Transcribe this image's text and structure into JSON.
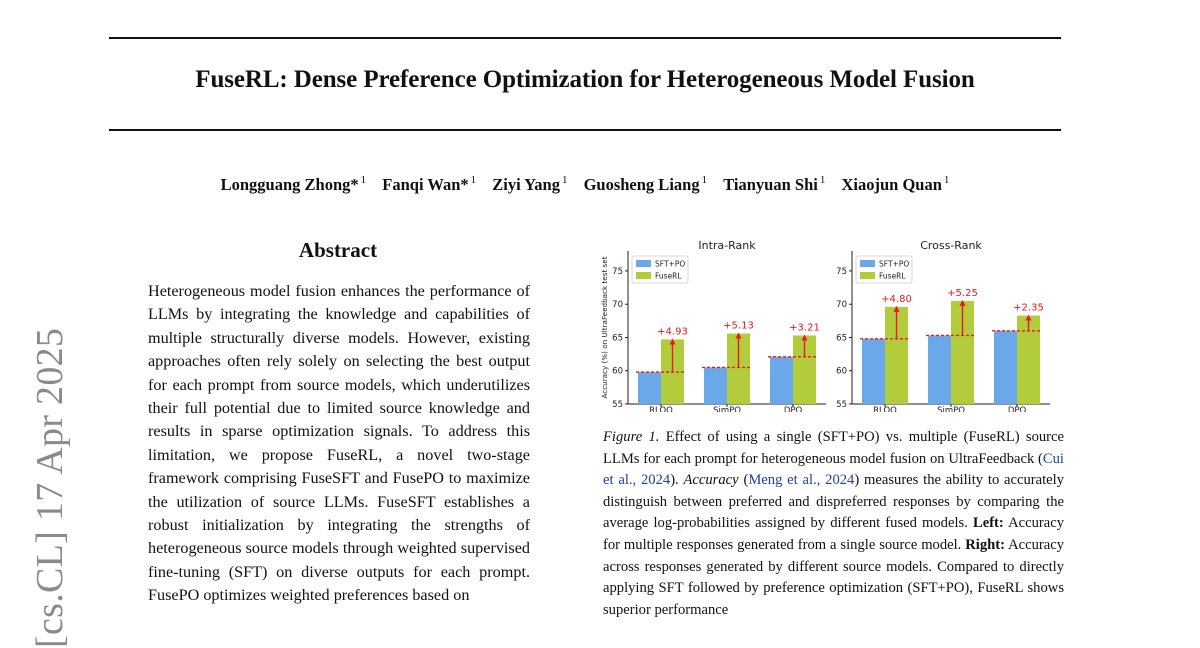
{
  "paper": {
    "title": "FuseRL: Dense Preference Optimization for Heterogeneous Model Fusion",
    "authors": [
      {
        "name": "Longguang Zhong*",
        "aff": "1"
      },
      {
        "name": "Fanqi Wan*",
        "aff": "1"
      },
      {
        "name": "Ziyi Yang",
        "aff": "1"
      },
      {
        "name": "Guosheng Liang",
        "aff": "1"
      },
      {
        "name": "Tianyuan Shi",
        "aff": "1"
      },
      {
        "name": "Xiaojun Quan",
        "aff": "1"
      }
    ],
    "arxiv_stamp": "[cs.CL]  17 Apr 2025"
  },
  "abstract": {
    "heading": "Abstract",
    "text": "Heterogeneous model fusion enhances the performance of LLMs by integrating the knowledge and capabilities of multiple structurally diverse models. However, existing approaches often rely solely on selecting the best output for each prompt from source models, which underutilizes their full potential due to limited source knowledge and results in sparse optimization signals. To address this limitation, we propose FuseRL, a novel two-stage framework comprising FuseSFT and FusePO to maximize the utilization of source LLMs. FuseSFT establishes a robust initialization by integrating the strengths of heterogeneous source models through weighted supervised fine-tuning (SFT) on diverse outputs for each prompt. FusePO optimizes weighted preferences based on"
  },
  "figure": {
    "caption": {
      "label": "Figure 1.",
      "t1": " Effect of using a single (SFT+PO) vs. multiple (FuseRL) source LLMs for each prompt for heterogeneous model fusion on UltraFeedback (",
      "cite1": "Cui et al., 2024",
      "t2": "). ",
      "em1": "Accuracy",
      "t3": " (",
      "cite2": "Meng et al., 2024",
      "t4": ") measures the ability to accurately distinguish between preferred and dispreferred responses by comparing the average log-probabilities assigned by different fused models. ",
      "left_label": "Left:",
      "t5": " Accuracy for multiple responses generated from a single source model. ",
      "right_label": "Right:",
      "t6": " Accuracy across responses generated by different source models. Compared to directly applying SFT followed by preference optimization (SFT+PO), FuseRL shows superior performance"
    }
  },
  "chart_data": [
    {
      "type": "bar",
      "title": "Intra-Rank",
      "ylabel": "Accuracy (%) on UltraFeedback test set",
      "categories": [
        "RLOO",
        "SimPO",
        "DPO"
      ],
      "series": [
        {
          "name": "SFT+PO",
          "values": [
            59.8,
            60.5,
            62.1
          ]
        },
        {
          "name": "FuseRL",
          "values": [
            64.7,
            65.6,
            65.3
          ]
        }
      ],
      "gains": [
        "+4.93",
        "+5.13",
        "+3.21"
      ],
      "ylim": [
        55,
        78
      ],
      "yticks": [
        55,
        60,
        65,
        70,
        75
      ],
      "legend": "top-left",
      "colors": {
        "sft": "#6aa8ea",
        "fuse": "#b2cc3c",
        "arrow": "#e8191f"
      }
    },
    {
      "type": "bar",
      "title": "Cross-Rank",
      "categories": [
        "RLOO",
        "SimPO",
        "DPO"
      ],
      "series": [
        {
          "name": "SFT+PO",
          "values": [
            64.8,
            65.3,
            66.0
          ]
        },
        {
          "name": "FuseRL",
          "values": [
            69.6,
            70.5,
            68.3
          ]
        }
      ],
      "gains": [
        "+4.80",
        "+5.25",
        "+2.35"
      ],
      "ylim": [
        55,
        78
      ],
      "yticks": [
        55,
        60,
        65,
        70,
        75
      ],
      "legend": "top-left",
      "colors": {
        "sft": "#6aa8ea",
        "fuse": "#b2cc3c",
        "arrow": "#e8191f"
      }
    }
  ]
}
